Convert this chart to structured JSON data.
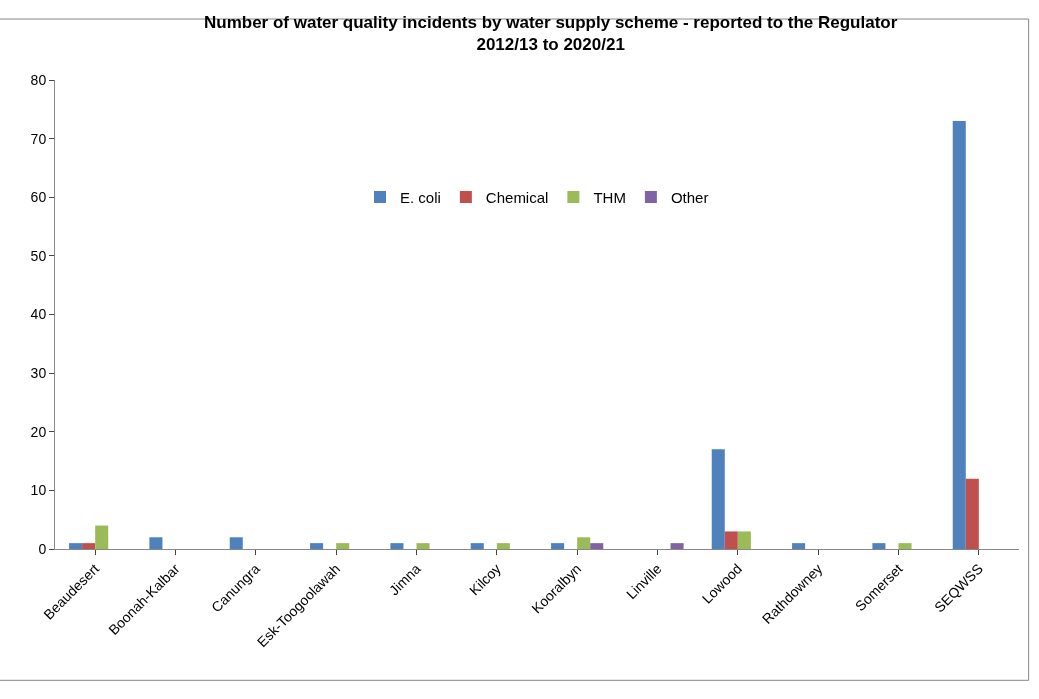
{
  "chart_data": {
    "type": "bar",
    "title": "Number of water quality incidents by water supply scheme - reported to the Regulator\n2012/13 to 2020/21",
    "categories": [
      "Beaudesert",
      "Boonah-Kalbar",
      "Canungra",
      "Esk-Toogoolawah",
      "Jimna",
      "Kilcoy",
      "Kooralbyn",
      "Linville",
      "Lowood",
      "Rathdowney",
      "Somerset",
      "SEQWSS"
    ],
    "series": [
      {
        "name": "E. coli",
        "color": "#4f81bd",
        "values": [
          1,
          2,
          2,
          1,
          1,
          1,
          1,
          0,
          17,
          1,
          1,
          73
        ]
      },
      {
        "name": "Chemical",
        "color": "#c0504d",
        "values": [
          1,
          0,
          0,
          0,
          0,
          0,
          0,
          0,
          3,
          0,
          0,
          12
        ]
      },
      {
        "name": "THM",
        "color": "#9bbb59",
        "values": [
          4,
          0,
          0,
          1,
          1,
          1,
          2,
          0,
          3,
          0,
          1,
          0
        ]
      },
      {
        "name": "Other",
        "color": "#8064a2",
        "values": [
          0,
          0,
          0,
          0,
          0,
          0,
          1,
          1,
          0,
          0,
          0,
          0
        ]
      }
    ],
    "ylim": [
      0,
      80
    ],
    "yticks": [
      0,
      10,
      20,
      30,
      40,
      50,
      60,
      70,
      80
    ],
    "grid": false,
    "legend": "top"
  }
}
